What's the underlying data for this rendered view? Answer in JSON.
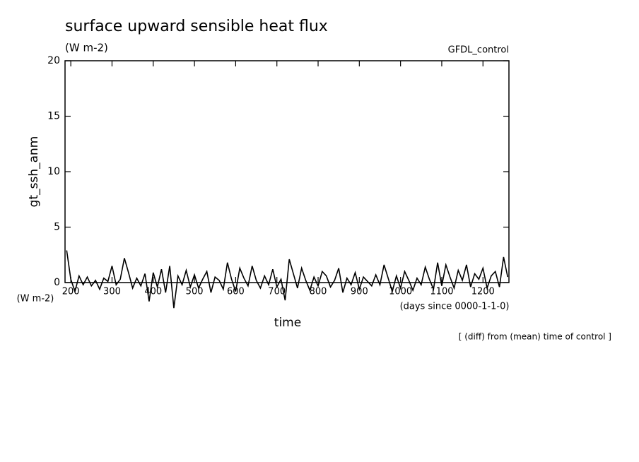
{
  "chart_data": {
    "type": "line",
    "title": "surface upward sensible heat flux",
    "subtitle": "(W m-2)",
    "annotation_right": "GFDL_control",
    "y_label": "gt_ssh_anm",
    "x_label": "time",
    "y_units": "(W m-2)",
    "x_units": "(days since 0000-1-1-0)",
    "footnote": "[ (diff) from (mean) time of control ]",
    "xlim": [
      186,
      1263
    ],
    "ylim": [
      0,
      20
    ],
    "xticks": [
      200,
      300,
      400,
      500,
      600,
      700,
      800,
      900,
      1000,
      1100,
      1200
    ],
    "yticks": [
      0,
      5,
      10,
      15,
      20
    ],
    "x": [
      190,
      200,
      210,
      220,
      230,
      240,
      250,
      260,
      270,
      280,
      290,
      300,
      310,
      320,
      330,
      340,
      350,
      360,
      370,
      380,
      390,
      400,
      410,
      420,
      430,
      440,
      450,
      460,
      470,
      480,
      490,
      500,
      510,
      520,
      530,
      540,
      550,
      560,
      570,
      580,
      590,
      600,
      610,
      620,
      630,
      640,
      650,
      660,
      670,
      680,
      690,
      700,
      710,
      720,
      730,
      740,
      750,
      760,
      770,
      780,
      790,
      800,
      810,
      820,
      830,
      840,
      850,
      860,
      870,
      880,
      890,
      900,
      910,
      920,
      930,
      940,
      950,
      960,
      970,
      980,
      990,
      1000,
      1010,
      1020,
      1030,
      1040,
      1050,
      1060,
      1070,
      1080,
      1090,
      1100,
      1110,
      1120,
      1130,
      1140,
      1150,
      1160,
      1170,
      1180,
      1190,
      1200,
      1210,
      1220,
      1230,
      1240,
      1250,
      1260
    ],
    "series": [
      {
        "color": "#000000",
        "values": [
          2.9,
          0.3,
          -0.8,
          0.6,
          -0.2,
          0.5,
          -0.3,
          0.2,
          -0.6,
          0.4,
          0.1,
          1.5,
          -0.2,
          0.3,
          2.2,
          0.9,
          -0.5,
          0.4,
          -0.3,
          0.8,
          -1.7,
          0.9,
          -0.4,
          1.2,
          -0.9,
          1.5,
          -2.3,
          0.6,
          -0.2,
          1.1,
          -0.4,
          0.7,
          -0.5,
          0.3,
          1.0,
          -0.9,
          0.5,
          0.2,
          -0.6,
          1.8,
          0.3,
          -0.8,
          1.3,
          0.4,
          -0.3,
          1.5,
          0.2,
          -0.5,
          0.6,
          -0.2,
          1.2,
          -0.4,
          0.3,
          -1.6,
          2.1,
          0.8,
          -0.5,
          1.3,
          0.2,
          -0.7,
          0.5,
          -0.3,
          1.0,
          0.6,
          -0.4,
          0.2,
          1.3,
          -0.9,
          0.4,
          -0.2,
          0.9,
          -0.6,
          0.5,
          0.1,
          -0.3,
          0.7,
          -0.2,
          1.6,
          0.4,
          -0.8,
          0.6,
          -0.5,
          1.0,
          0.2,
          -0.7,
          0.4,
          -0.2,
          1.4,
          0.3,
          -0.6,
          1.8,
          -0.3,
          1.6,
          0.5,
          -0.5,
          1.1,
          0.2,
          1.6,
          -0.4,
          0.8,
          0.3,
          1.3,
          -0.5,
          0.6,
          1.0,
          -0.4,
          2.3,
          0.5
        ]
      }
    ]
  }
}
